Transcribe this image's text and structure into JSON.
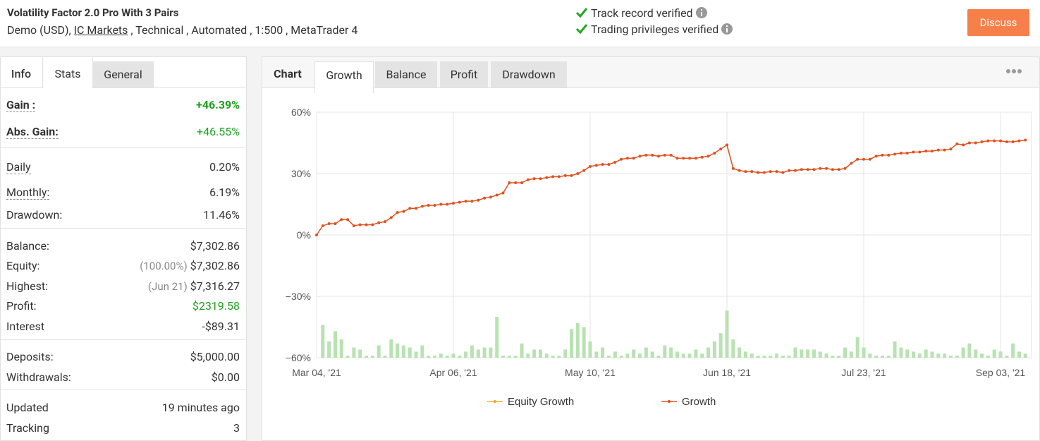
{
  "header": {
    "title": "Volatility Factor 2.0 Pro With 3 Pairs",
    "account": "Demo (USD),",
    "broker": "IC Markets",
    "details": ", Technical , Automated , 1:500 , MetaTrader 4",
    "verifications": [
      "Track record verified",
      "Trading privileges verified"
    ],
    "button": "Discuss"
  },
  "left_tabs": [
    "Info",
    "Stats",
    "General"
  ],
  "stats": [
    [
      {
        "label": "Gain :",
        "value": "+46.39%"
      },
      {
        "label": "Abs. Gain:",
        "value": "+46.55%"
      }
    ],
    [
      {
        "label": "Daily",
        "value": "0.20%"
      },
      {
        "label": "Monthly:",
        "value": "6.19%"
      },
      {
        "label": "Drawdown:",
        "value": "11.46%"
      }
    ],
    [
      {
        "label": "Balance:",
        "value": "$7,302.86"
      },
      {
        "label": "Equity:",
        "note": "(100.00%)",
        "value": "$7,302.86"
      },
      {
        "label": "Highest:",
        "note": "(Jun 21)",
        "value": "$7,316.27"
      },
      {
        "label": "Profit:",
        "value": "$2319.58"
      },
      {
        "label": "Interest",
        "value": "-$89.31"
      }
    ],
    [
      {
        "label": "Deposits:",
        "value": "$5,000.00"
      },
      {
        "label": "Withdrawals:",
        "value": "$0.00"
      }
    ],
    [
      {
        "label": "Updated",
        "value": "19 minutes ago"
      },
      {
        "label": "Tracking",
        "value": "3"
      }
    ]
  ],
  "chart_tabs": {
    "label": "Chart",
    "tabs": [
      "Growth",
      "Balance",
      "Profit",
      "Drawdown"
    ]
  },
  "chart_data": {
    "type": "line",
    "categories": [
      "Mar 04, '21",
      null,
      null,
      null,
      null,
      null,
      null,
      null,
      null,
      null,
      null,
      null,
      null,
      null,
      null,
      null,
      null,
      null,
      null,
      null,
      null,
      null,
      "Apr 06, '21",
      null,
      null,
      null,
      null,
      null,
      null,
      null,
      null,
      null,
      null,
      null,
      null,
      null,
      null,
      null,
      null,
      null,
      null,
      null,
      null,
      null,
      "May 10, '21",
      null,
      null,
      null,
      null,
      null,
      null,
      null,
      null,
      null,
      null,
      null,
      null,
      null,
      null,
      null,
      null,
      null,
      null,
      null,
      null,
      null,
      "Jun 18, '21",
      null,
      null,
      null,
      null,
      null,
      null,
      null,
      null,
      null,
      null,
      null,
      null,
      null,
      null,
      null,
      null,
      null,
      null,
      null,
      null,
      null,
      "Jul 23, '21",
      null,
      null,
      null,
      null,
      null,
      null,
      null,
      null,
      null,
      null,
      null,
      null,
      null,
      null,
      null,
      null,
      null,
      null,
      null,
      null,
      null,
      "Sep 03, '21",
      null,
      null,
      null,
      null
    ],
    "series": [
      {
        "name": "Equity Growth",
        "color": "#f0a830"
      },
      {
        "name": "Growth",
        "color": "#e2501e",
        "values": [
          0,
          4.5,
          5.5,
          5.5,
          7.5,
          7.5,
          4.5,
          5,
          5,
          5,
          6,
          6.5,
          8.5,
          11,
          11.5,
          13,
          13,
          14,
          14.5,
          14.5,
          15,
          15,
          15.5,
          16,
          16.5,
          16.5,
          17,
          18,
          18.5,
          19.5,
          20.5,
          25.5,
          25.5,
          25.5,
          27,
          27.5,
          27.5,
          28,
          28.5,
          28.5,
          29,
          29,
          30,
          31.5,
          33.5,
          34,
          34.5,
          34.5,
          35.5,
          37,
          37.5,
          37.5,
          38.5,
          39,
          39,
          38.5,
          39,
          39,
          37.5,
          37.5,
          37.5,
          37.5,
          38,
          38.5,
          40,
          42,
          44,
          32.5,
          31.5,
          31,
          31,
          30.5,
          30.5,
          31,
          31,
          30.5,
          31.5,
          31.5,
          32,
          32,
          32,
          32.5,
          32.5,
          32,
          32,
          32.5,
          35,
          37,
          37,
          37,
          38.5,
          39,
          39,
          39.5,
          40,
          40,
          40.5,
          40.5,
          41,
          41,
          41.5,
          41.5,
          42,
          44.5,
          44,
          45,
          45,
          45.5,
          46,
          46,
          46,
          45.5,
          45.5,
          46,
          46.39
        ]
      }
    ],
    "bars": {
      "color": "#b8e2b2",
      "values": [
        -60,
        -44,
        -52,
        -47,
        -51,
        -59,
        -55,
        -56,
        -59,
        -59,
        -54,
        -59,
        -51,
        -53,
        -54,
        -55,
        -57,
        -54,
        -59,
        -59,
        -58,
        -59,
        -58,
        -59,
        -57,
        -54,
        -56,
        -55,
        -55,
        -40,
        -59,
        -59,
        -59,
        -53,
        -58,
        -56,
        -56,
        -58,
        -59,
        -59,
        -56,
        -46,
        -43,
        -45,
        -52,
        -57,
        -55,
        -59,
        -57,
        -59,
        -58,
        -56,
        -58,
        -55,
        -57,
        -59,
        -54,
        -55,
        -57,
        -58,
        -58,
        -56,
        -58,
        -55,
        -52,
        -48,
        -37,
        -51,
        -55,
        -57,
        -58,
        -59,
        -59,
        -59,
        -58,
        -59,
        -59,
        -55,
        -56,
        -56,
        -56,
        -57,
        -58,
        -59,
        -59,
        -55,
        -57,
        -50,
        -55,
        -58,
        -59,
        -59,
        -59,
        -52,
        -55,
        -56,
        -57,
        -58,
        -56,
        -57,
        -58,
        -58,
        -59,
        -59,
        -55,
        -53,
        -56,
        -58,
        -59,
        -56,
        -57,
        -59,
        -53,
        -57,
        -58
      ]
    },
    "ylim": [
      -60,
      60
    ],
    "yticks": [
      {
        "value": 60,
        "label": "60%"
      },
      {
        "value": 30,
        "label": "30%"
      },
      {
        "value": 0,
        "label": "0%"
      },
      {
        "value": -30,
        "label": "−30%"
      },
      {
        "value": -60,
        "label": "−60%"
      }
    ],
    "grid": true
  }
}
